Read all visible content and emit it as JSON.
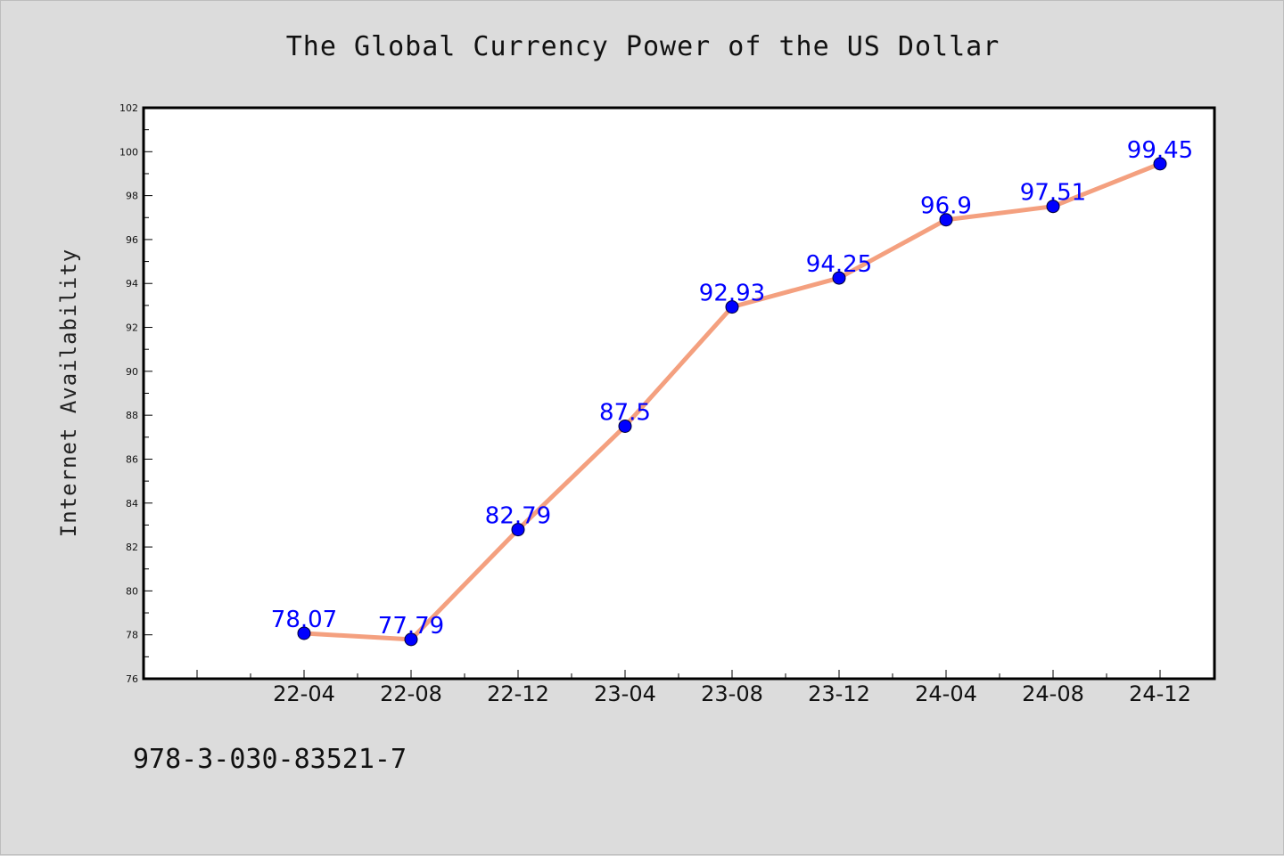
{
  "chart_data": {
    "type": "line",
    "title": "The Global Currency Power of the US Dollar",
    "xlabel": "",
    "ylabel": "Internet Availability",
    "categories": [
      "22-04",
      "22-08",
      "22-12",
      "23-04",
      "23-08",
      "23-12",
      "24-04",
      "24-08",
      "24-12"
    ],
    "series": [
      {
        "values": [
          78.07,
          77.79,
          82.79,
          87.5,
          92.93,
          94.25,
          96.9,
          97.51,
          99.45
        ],
        "data_labels": [
          "78.07",
          "77.79",
          "82.79",
          "87.5",
          "92.93",
          "94.25",
          "96.9",
          "97.51",
          "99.45"
        ],
        "line_color": "#f4a07f",
        "marker_color": "#0000ff"
      }
    ],
    "ylim": [
      76,
      102
    ],
    "yticks": [
      "76",
      "78",
      "80",
      "82",
      "84",
      "86",
      "88",
      "90",
      "92",
      "94",
      "96",
      "98",
      "100",
      "102"
    ],
    "grid": false,
    "legend": "none",
    "label_color": "#0000ff"
  },
  "footnote": "978-3-030-83521-7"
}
